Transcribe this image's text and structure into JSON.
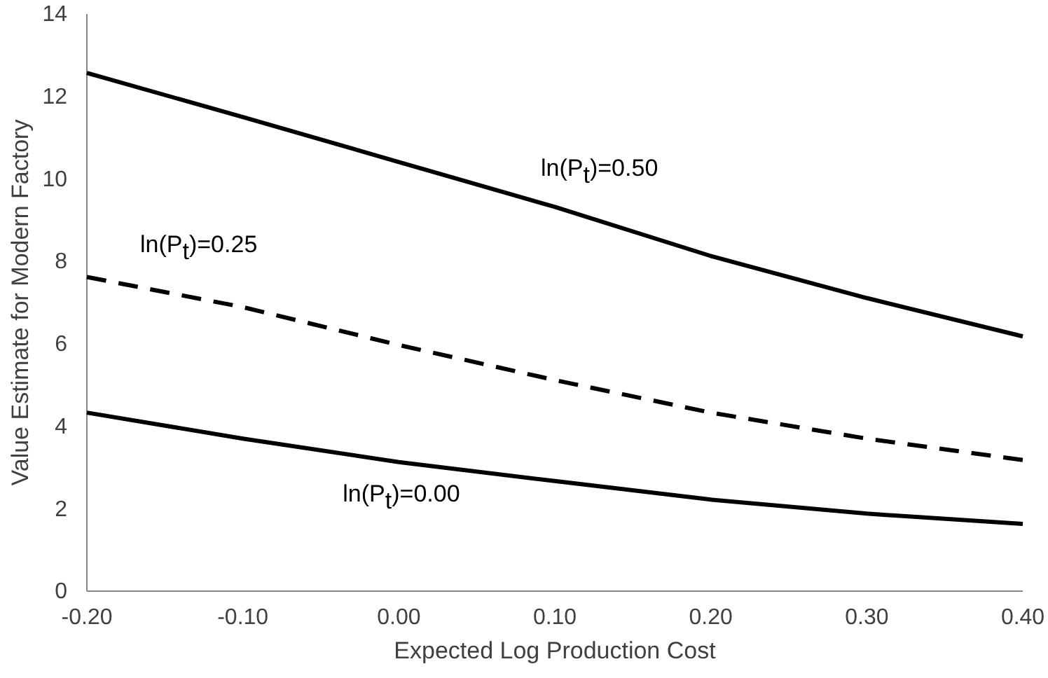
{
  "chart_data": {
    "type": "line",
    "xlabel": "Expected Log Production Cost",
    "ylabel": "Value Estimate for Modern Factory",
    "x": [
      -0.2,
      -0.1,
      0,
      0.1,
      0.2,
      0.3,
      0.4
    ],
    "series": [
      {
        "name": "ln(P$_{t}$)=0.50",
        "color": "#000000",
        "line_style": "solid",
        "values": [
          12.57,
          11.5,
          10.41,
          9.32,
          8.13,
          7.11,
          6.18
        ]
      },
      {
        "name": "ln(P$_{t}$)=0.25",
        "color": "#000000",
        "line_style": "dashed",
        "values": [
          7.62,
          6.89,
          5.97,
          5.12,
          4.33,
          3.7,
          3.18
        ]
      },
      {
        "name": "ln(P$_{t}$)=0.00",
        "color": "#000000",
        "line_style": "solid",
        "values": [
          4.33,
          3.7,
          3.13,
          2.67,
          2.22,
          1.88,
          1.63
        ]
      }
    ],
    "xlim": [
      -0.2,
      0.4
    ],
    "xticks": [
      {
        "value": -0.2,
        "label": "-0.20"
      },
      {
        "value": -0.1,
        "label": "-0.10"
      },
      {
        "value": 0,
        "label": "0.00"
      },
      {
        "value": 0.1,
        "label": "0.10"
      },
      {
        "value": 0.2,
        "label": "0.20"
      },
      {
        "value": 0.3,
        "label": "0.30"
      },
      {
        "value": 0.4,
        "label": "0.40"
      }
    ],
    "ylim": [
      0,
      14
    ],
    "yticks": [
      0,
      2,
      4,
      6,
      8,
      10,
      12,
      14
    ],
    "grid": false,
    "legend": false,
    "marker": "none"
  }
}
